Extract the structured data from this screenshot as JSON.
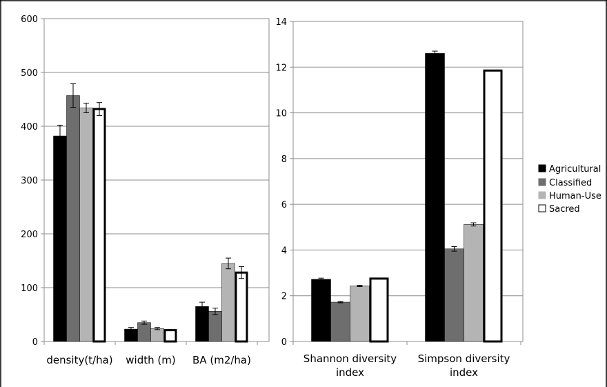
{
  "chart_data": [
    {
      "type": "bar",
      "categories": [
        "density(t/ha)",
        "width (m)",
        "BA (m2/ha)"
      ],
      "ylim": [
        0,
        600
      ],
      "yticks": [
        "0",
        "100",
        "200",
        "300",
        "400",
        "500",
        "600"
      ],
      "grid": true,
      "series": [
        {
          "name": "Agricultural",
          "color": "#000000",
          "values": [
            382,
            23,
            65
          ],
          "errors": [
            20,
            3,
            8
          ]
        },
        {
          "name": "Classified",
          "color": "#6e6e6e",
          "values": [
            457,
            35,
            56
          ],
          "errors": [
            22,
            3,
            6
          ]
        },
        {
          "name": "Human-Use",
          "color": "#b4b4b4",
          "values": [
            434,
            24,
            145
          ],
          "errors": [
            9,
            2,
            10
          ]
        },
        {
          "name": "Sacred",
          "color": "#ffffff",
          "values": [
            432,
            21,
            128
          ],
          "errors": [
            12,
            1,
            11
          ]
        }
      ]
    },
    {
      "type": "bar",
      "categories": [
        "Shannon diversity index",
        "Simpson diversity index"
      ],
      "ylim": [
        0,
        14
      ],
      "yticks": [
        "0",
        "2",
        "4",
        "6",
        "8",
        "10",
        "12",
        "14"
      ],
      "grid": true,
      "series": [
        {
          "name": "Agricultural",
          "color": "#000000",
          "values": [
            2.72,
            12.6
          ],
          "errors": [
            0.05,
            0.1
          ]
        },
        {
          "name": "Classified",
          "color": "#6e6e6e",
          "values": [
            1.72,
            4.05
          ],
          "errors": [
            0.03,
            0.1
          ]
        },
        {
          "name": "Human-Use",
          "color": "#b4b4b4",
          "values": [
            2.43,
            5.12
          ],
          "errors": [
            0.03,
            0.07
          ]
        },
        {
          "name": "Sacred",
          "color": "#ffffff",
          "values": [
            2.75,
            11.85
          ],
          "errors": [
            0.02,
            0.02
          ]
        }
      ]
    }
  ],
  "legend": {
    "placement": "right",
    "items": [
      {
        "label": "Agricultural",
        "color": "#000000"
      },
      {
        "label": "Classified",
        "color": "#6e6e6e"
      },
      {
        "label": "Human-Use",
        "color": "#b4b4b4"
      },
      {
        "label": "Sacred",
        "color": "#ffffff"
      }
    ]
  }
}
